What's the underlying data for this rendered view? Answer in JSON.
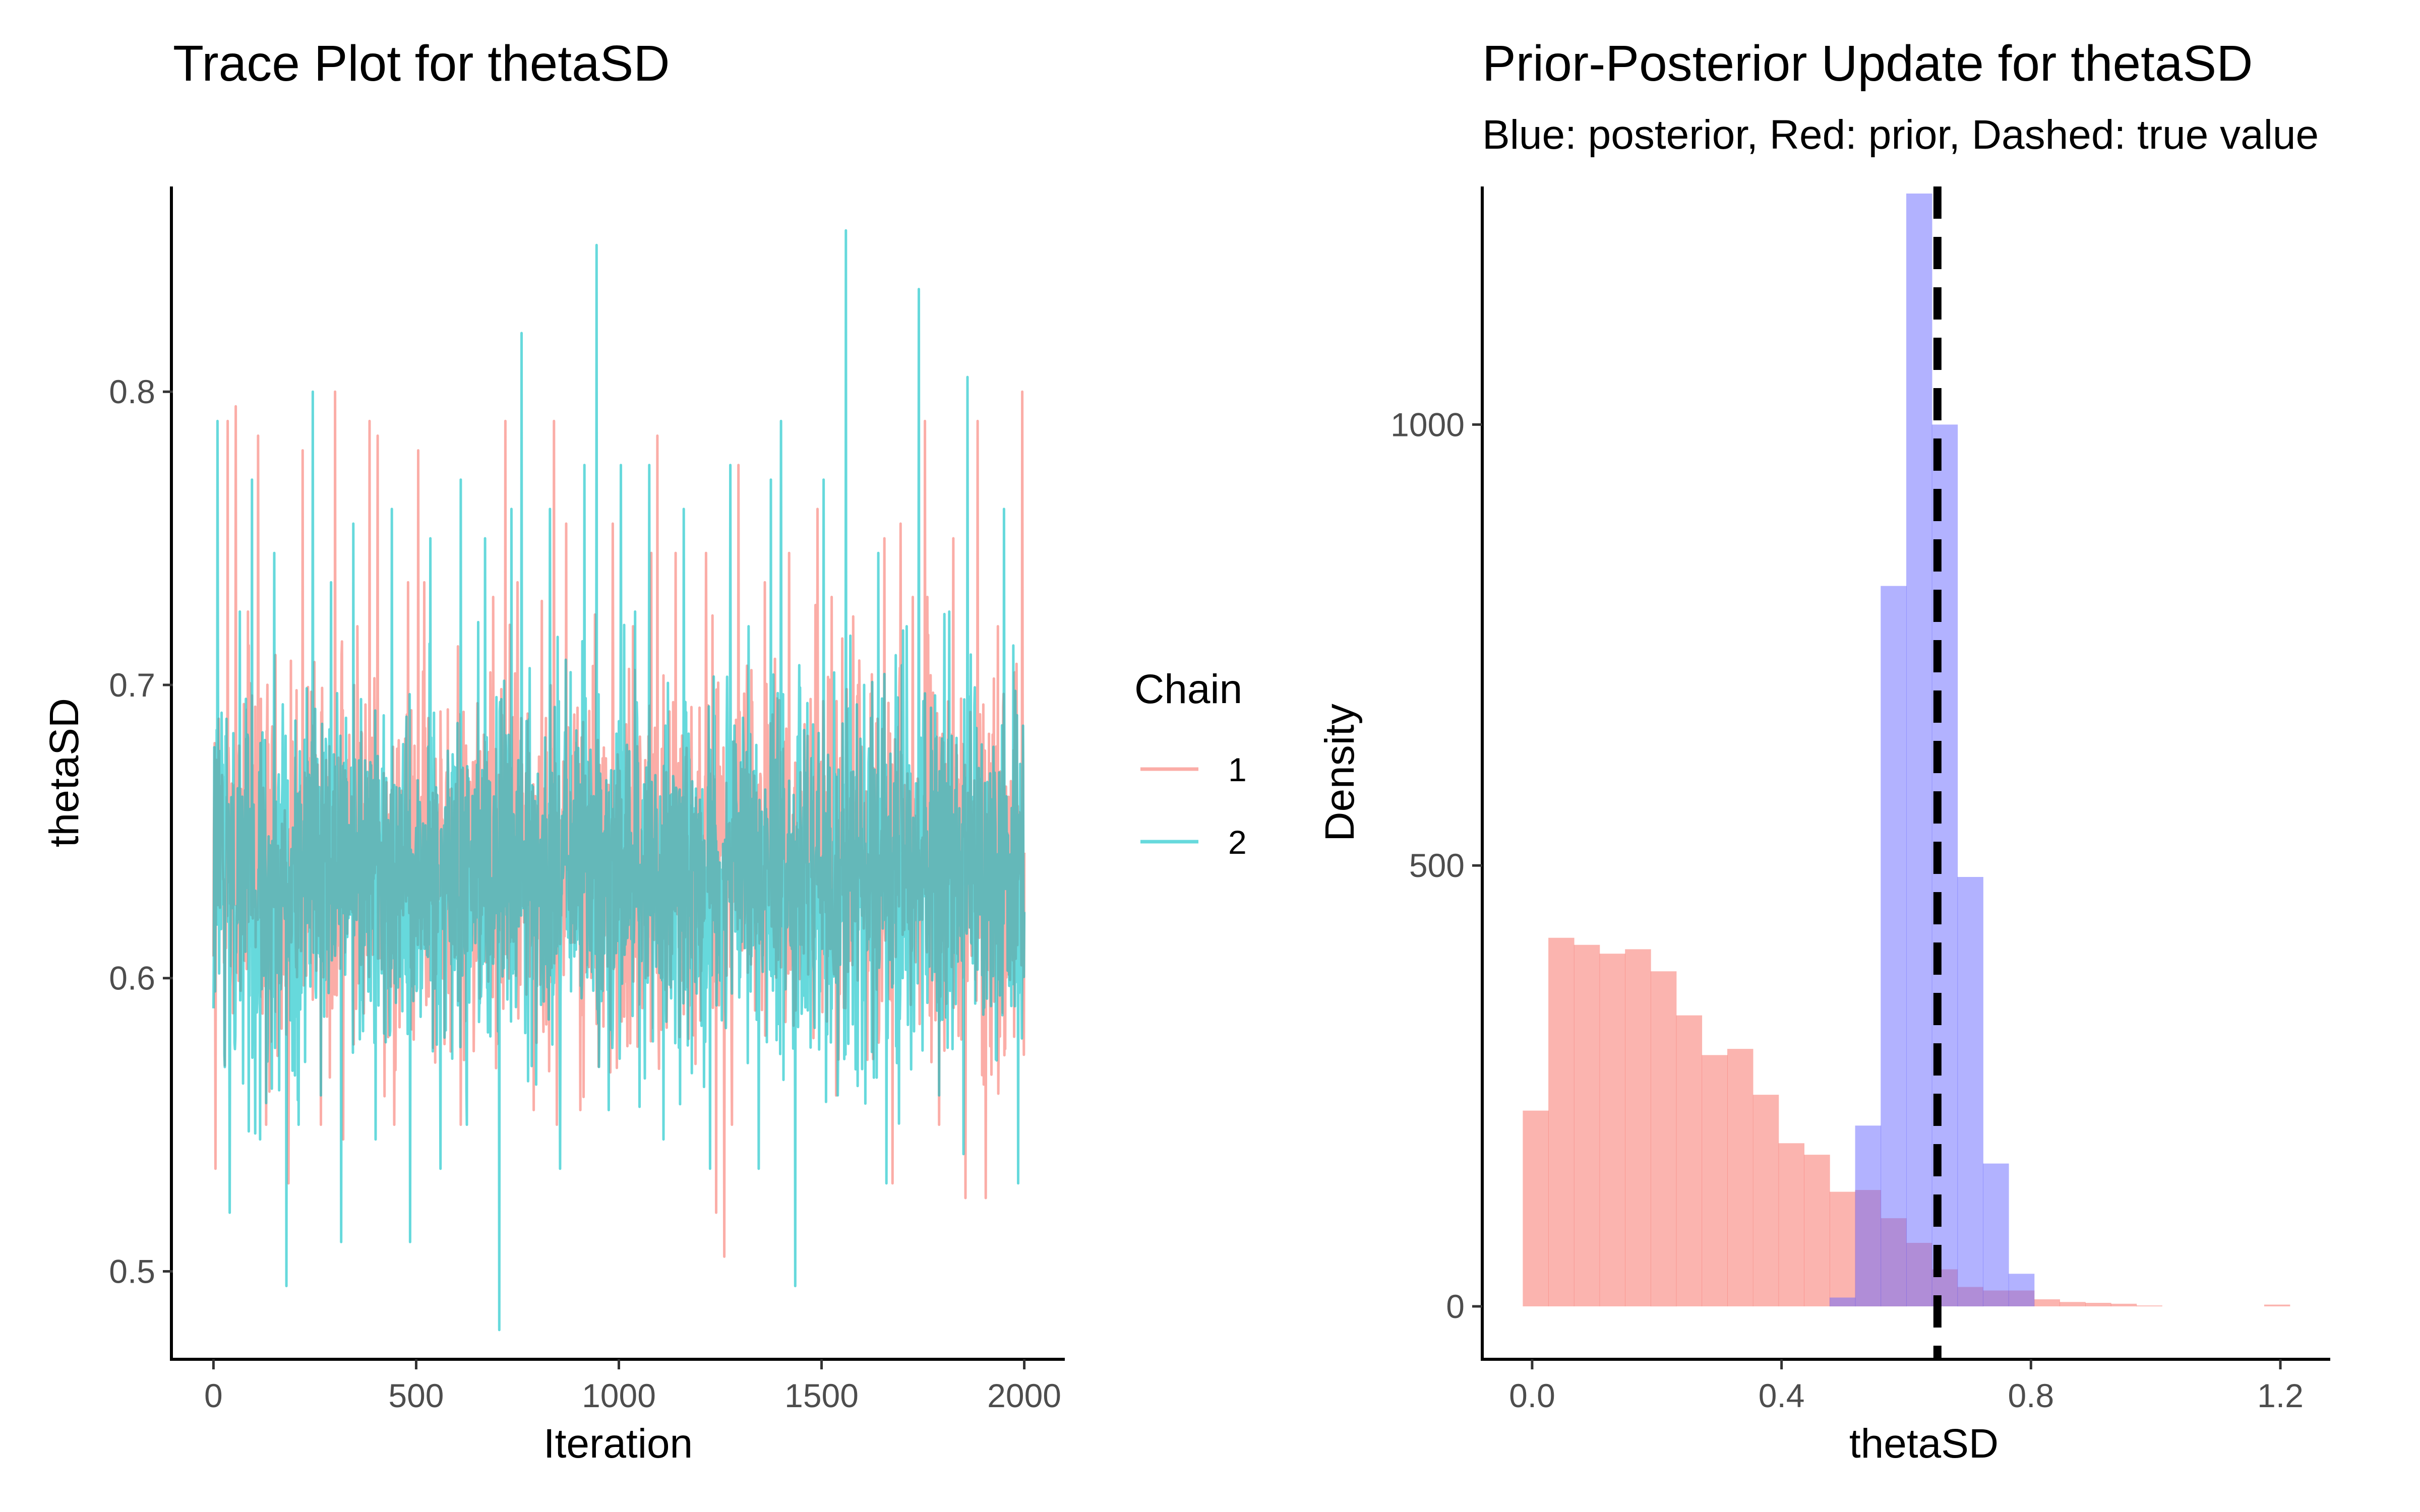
{
  "chart_data": [
    {
      "type": "line",
      "title": "Trace Plot for thetaSD",
      "xlabel": "Iteration",
      "ylabel": "thetaSD",
      "xlim": [
        -100,
        2100
      ],
      "ylim": [
        0.47,
        0.87
      ],
      "xticks": [
        0,
        500,
        1000,
        1500,
        2000
      ],
      "xtick_labels": [
        "0",
        "500",
        "1000",
        "1500",
        "2000"
      ],
      "yticks": [
        0.5,
        0.6,
        0.7,
        0.8
      ],
      "ytick_labels": [
        "0.5",
        "0.6",
        "0.7",
        "0.8"
      ],
      "grid": false,
      "legend": {
        "title": "Chain",
        "position": "right",
        "entries": [
          {
            "label": "1",
            "color": "#F8766D"
          },
          {
            "label": "2",
            "color": "#00BFC4"
          }
        ]
      },
      "series": [
        {
          "name": "1",
          "color": "#F8766D",
          "alpha": 0.6,
          "x_start": 0,
          "x_end": 2000,
          "summary": {
            "mean": 0.64,
            "min": 0.5,
            "max": 0.8,
            "sd": 0.045
          },
          "extremes": [
            [
              5,
              0.535
            ],
            [
              35,
              0.79
            ],
            [
              55,
              0.795
            ],
            [
              85,
              0.725
            ],
            [
              110,
              0.785
            ],
            [
              130,
              0.55
            ],
            [
              185,
              0.53
            ],
            [
              220,
              0.78
            ],
            [
              265,
              0.55
            ],
            [
              300,
              0.8
            ],
            [
              320,
              0.545
            ],
            [
              355,
              0.72
            ],
            [
              385,
              0.79
            ],
            [
              405,
              0.785
            ],
            [
              480,
              0.735
            ],
            [
              505,
              0.78
            ],
            [
              520,
              0.735
            ],
            [
              585,
              0.575
            ],
            [
              610,
              0.55
            ],
            [
              690,
              0.73
            ],
            [
              720,
              0.79
            ],
            [
              750,
              0.735
            ],
            [
              790,
              0.555
            ],
            [
              840,
              0.79
            ],
            [
              870,
              0.755
            ],
            [
              905,
              0.555
            ],
            [
              985,
              0.755
            ],
            [
              1035,
              0.72
            ],
            [
              1080,
              0.745
            ],
            [
              1095,
              0.785
            ],
            [
              1140,
              0.745
            ],
            [
              1215,
              0.745
            ],
            [
              1240,
              0.52
            ],
            [
              1260,
              0.505
            ],
            [
              1295,
              0.775
            ],
            [
              1360,
              0.735
            ],
            [
              1420,
              0.745
            ],
            [
              1460,
              0.67
            ],
            [
              1490,
              0.76
            ],
            [
              1525,
              0.73
            ],
            [
              1590,
              0.7
            ],
            [
              1655,
              0.75
            ],
            [
              1675,
              0.53
            ],
            [
              1695,
              0.755
            ],
            [
              1725,
              0.73
            ],
            [
              1755,
              0.79
            ],
            [
              1790,
              0.55
            ],
            [
              1825,
              0.75
            ],
            [
              1855,
              0.525
            ],
            [
              1885,
              0.79
            ],
            [
              1905,
              0.525
            ],
            [
              1935,
              0.72
            ],
            [
              1975,
              0.58
            ],
            [
              1995,
              0.8
            ]
          ]
        },
        {
          "name": "2",
          "color": "#00BFC4",
          "alpha": 0.6,
          "x_start": 0,
          "x_end": 2000,
          "summary": {
            "mean": 0.635,
            "min": 0.48,
            "max": 0.855,
            "sd": 0.045
          },
          "extremes": [
            [
              10,
              0.79
            ],
            [
              40,
              0.52
            ],
            [
              65,
              0.725
            ],
            [
              95,
              0.77
            ],
            [
              115,
              0.545
            ],
            [
              150,
              0.745
            ],
            [
              180,
              0.495
            ],
            [
              210,
              0.55
            ],
            [
              245,
              0.8
            ],
            [
              265,
              0.56
            ],
            [
              290,
              0.735
            ],
            [
              315,
              0.51
            ],
            [
              345,
              0.755
            ],
            [
              400,
              0.545
            ],
            [
              440,
              0.76
            ],
            [
              485,
              0.51
            ],
            [
              535,
              0.75
            ],
            [
              560,
              0.535
            ],
            [
              610,
              0.77
            ],
            [
              625,
              0.55
            ],
            [
              670,
              0.75
            ],
            [
              705,
              0.48
            ],
            [
              735,
              0.76
            ],
            [
              760,
              0.82
            ],
            [
              785,
              0.57
            ],
            [
              830,
              0.76
            ],
            [
              855,
              0.535
            ],
            [
              915,
              0.775
            ],
            [
              945,
              0.85
            ],
            [
              975,
              0.555
            ],
            [
              1005,
              0.775
            ],
            [
              1040,
              0.725
            ],
            [
              1075,
              0.775
            ],
            [
              1110,
              0.545
            ],
            [
              1160,
              0.76
            ],
            [
              1225,
              0.535
            ],
            [
              1275,
              0.775
            ],
            [
              1320,
              0.72
            ],
            [
              1345,
              0.535
            ],
            [
              1375,
              0.77
            ],
            [
              1400,
              0.79
            ],
            [
              1435,
              0.495
            ],
            [
              1460,
              0.59
            ],
            [
              1505,
              0.77
            ],
            [
              1540,
              0.56
            ],
            [
              1560,
              0.855
            ],
            [
              1605,
              0.7
            ],
            [
              1640,
              0.745
            ],
            [
              1660,
              0.53
            ],
            [
              1710,
              0.72
            ],
            [
              1740,
              0.835
            ],
            [
              1790,
              0.56
            ],
            [
              1815,
              0.725
            ],
            [
              1850,
              0.54
            ],
            [
              1860,
              0.805
            ],
            [
              1900,
              0.6
            ],
            [
              1950,
              0.76
            ],
            [
              1985,
              0.53
            ]
          ]
        }
      ]
    },
    {
      "type": "bar",
      "title": "Prior-Posterior Update for thetaSD",
      "subtitle": "Blue: posterior, Red: prior, Dashed: true value",
      "xlabel": "thetaSD",
      "ylabel": "Density",
      "xlim": [
        -0.08,
        1.28
      ],
      "ylim": [
        -60,
        1270
      ],
      "xticks": [
        0.0,
        0.4,
        0.8,
        1.2
      ],
      "xtick_labels": [
        "0.0",
        "0.4",
        "0.8",
        "1.2"
      ],
      "yticks": [
        0,
        500,
        1000
      ],
      "ytick_labels": [
        "0",
        "500",
        "1000"
      ],
      "grid": false,
      "bin_width": 0.041,
      "true_value": 0.65,
      "series": [
        {
          "name": "prior",
          "color": "#F8766D",
          "alpha": 0.55,
          "bin_starts": [
            -0.015,
            0.026,
            0.067,
            0.108,
            0.149,
            0.19,
            0.231,
            0.272,
            0.313,
            0.354,
            0.395,
            0.436,
            0.477,
            0.518,
            0.559,
            0.6,
            0.641,
            0.682,
            0.723,
            0.764,
            0.805,
            0.846,
            0.887,
            0.928,
            0.969,
            1.01,
            1.051,
            1.092,
            1.133,
            1.174
          ],
          "values": [
            222,
            418,
            410,
            400,
            405,
            380,
            330,
            285,
            292,
            240,
            185,
            172,
            130,
            132,
            100,
            72,
            42,
            22,
            18,
            18,
            8,
            5,
            4,
            3,
            1,
            0,
            0,
            0,
            0,
            2
          ]
        },
        {
          "name": "posterior",
          "color": "#6666FF",
          "alpha": 0.5,
          "bin_starts": [
            0.477,
            0.518,
            0.559,
            0.6,
            0.641,
            0.682,
            0.723,
            0.764
          ],
          "values": [
            10,
            205,
            817,
            1262,
            1000,
            487,
            162,
            37
          ]
        }
      ]
    }
  ]
}
